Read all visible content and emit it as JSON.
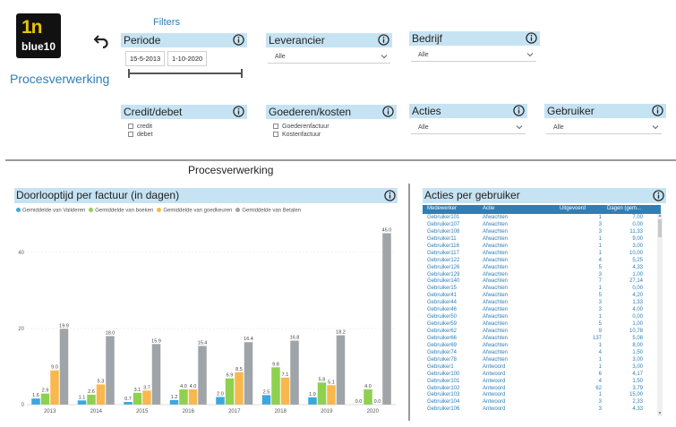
{
  "logo": {
    "top": "1n",
    "bottom": "blue10"
  },
  "app_title": "Procesverwerking",
  "filters_label": "Filters",
  "slicers": {
    "periode": {
      "label": "Periode",
      "start": "15-5-2013",
      "end": "1-10-2020"
    },
    "leverancier": {
      "label": "Leverancier",
      "value": "Alle"
    },
    "bedrijf": {
      "label": "Bedrijf",
      "value": "Alle"
    },
    "credit_debet": {
      "label": "Credit/debet",
      "options": [
        "credit",
        "debet"
      ]
    },
    "goederen_kosten": {
      "label": "Goederen/kosten",
      "options": [
        "Goederenfactuur",
        "Kostenfactuur"
      ]
    },
    "acties": {
      "label": "Acties",
      "value": "Alle"
    },
    "gebruiker": {
      "label": "Gebruiker",
      "value": "Alle"
    }
  },
  "section_title": "Procesverwerking",
  "chart_title": "Doorlooptijd per factuur (in dagen)",
  "colors": {
    "valideren": "#3ba7e0",
    "boeken": "#8fd14f",
    "goedkeuren": "#f9b84d",
    "betalen": "#9ea4a8",
    "header_bg": "#c6e3f3",
    "accent": "#2f7fb6"
  },
  "chart_data": {
    "type": "bar",
    "categories": [
      "2013",
      "2014",
      "2015",
      "2016",
      "2017",
      "2018",
      "2019",
      "2020"
    ],
    "series": [
      {
        "name": "Gemiddelde van Valideren",
        "values": [
          1.6,
          1.1,
          0.7,
          1.2,
          2.0,
          2.5,
          1.9,
          0.0
        ]
      },
      {
        "name": "Gemiddelde van boeken",
        "values": [
          2.9,
          2.6,
          3.1,
          4.0,
          6.9,
          9.8,
          5.8,
          4.0
        ]
      },
      {
        "name": "Gemiddelde van goedkeuren",
        "values": [
          9.0,
          5.3,
          3.7,
          4.0,
          8.5,
          7.1,
          5.1,
          0.0
        ]
      },
      {
        "name": "Gemiddelde van Betalen",
        "values": [
          19.9,
          18.0,
          15.9,
          15.4,
          16.4,
          16.8,
          18.2,
          45.0
        ]
      }
    ],
    "yticks": [
      0,
      20,
      40
    ],
    "ylim": [
      0,
      47
    ],
    "grid": true,
    "legend": "top-left"
  },
  "table": {
    "title": "Acties per gebruiker",
    "columns": [
      "Medewerker",
      "Actie",
      "Uitgevoerd",
      "Dagen (gem..."
    ],
    "rows": [
      [
        "Gebruiker101",
        "Afwachten",
        "1",
        "7,00"
      ],
      [
        "Gebruiker107",
        "Afwachten",
        "3",
        "0,00"
      ],
      [
        "Gebruiker108",
        "Afwachten",
        "3",
        "11,33"
      ],
      [
        "Gebruiker11",
        "Afwachten",
        "1",
        "9,00"
      ],
      [
        "Gebruiker116",
        "Afwachten",
        "1",
        "3,00"
      ],
      [
        "Gebruiker117",
        "Afwachten",
        "1",
        "10,00"
      ],
      [
        "Gebruiker122",
        "Afwachten",
        "4",
        "5,25"
      ],
      [
        "Gebruiker126",
        "Afwachten",
        "5",
        "4,33"
      ],
      [
        "Gebruiker129",
        "Afwachten",
        "3",
        "1,00"
      ],
      [
        "Gebruiker140",
        "Afwachten",
        "7",
        "27,14"
      ],
      [
        "Gebruiker15",
        "Afwachten",
        "1",
        "0,00"
      ],
      [
        "Gebruiker41",
        "Afwachten",
        "5",
        "4,20"
      ],
      [
        "Gebruiker44",
        "Afwachten",
        "3",
        "1,33"
      ],
      [
        "Gebruiker46",
        "Afwachten",
        "3",
        "4,00"
      ],
      [
        "Gebruiker50",
        "Afwachten",
        "1",
        "0,00"
      ],
      [
        "Gebruiker59",
        "Afwachten",
        "5",
        "1,00"
      ],
      [
        "Gebruiker62",
        "Afwachten",
        "9",
        "10,78"
      ],
      [
        "Gebruiker66",
        "Afwachten",
        "137",
        "5,08"
      ],
      [
        "Gebruiker69",
        "Afwachten",
        "1",
        "8,00"
      ],
      [
        "Gebruiker74",
        "Afwachten",
        "4",
        "1,50"
      ],
      [
        "Gebruiker78",
        "Afwachten",
        "1",
        "3,00"
      ],
      [
        "Gebruiker1",
        "Antwoord",
        "1",
        "3,00"
      ],
      [
        "Gebruiker100",
        "Antwoord",
        "6",
        "4,17"
      ],
      [
        "Gebruiker101",
        "Antwoord",
        "4",
        "1,50"
      ],
      [
        "Gebruiker102",
        "Antwoord",
        "62",
        "3,79"
      ],
      [
        "Gebruiker103",
        "Antwoord",
        "1",
        "15,00"
      ],
      [
        "Gebruiker104",
        "Antwoord",
        "3",
        "2,33"
      ],
      [
        "Gebruiker106",
        "Antwoord",
        "3",
        "4,33"
      ]
    ]
  }
}
